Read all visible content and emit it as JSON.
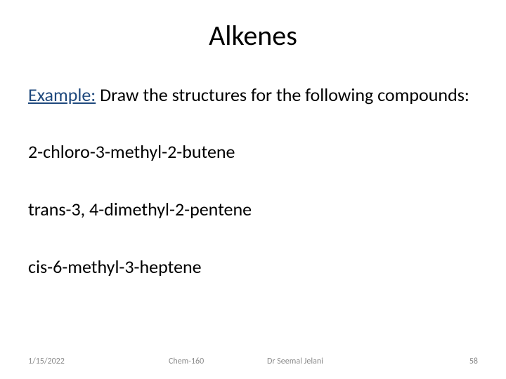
{
  "title": "Alkenes",
  "example": {
    "label": "Example:",
    "prompt": "  Draw the structures for the following compounds:"
  },
  "compounds": [
    "2-chloro-3-methyl-2-butene",
    "trans-3, 4-dimethyl-2-pentene",
    "cis-6-methyl-3-heptene"
  ],
  "footer": {
    "date": "1/15/2022",
    "course": "Chem-160",
    "author": "Dr Seemal Jelani",
    "page": "58"
  },
  "colors": {
    "background": "#ffffff",
    "text": "#000000",
    "example_label": "#1f497d",
    "footer_text": "#8a8a8a"
  },
  "typography": {
    "title_fontsize": 40,
    "body_fontsize": 26,
    "footer_fontsize": 12,
    "font_family": "Calibri"
  }
}
